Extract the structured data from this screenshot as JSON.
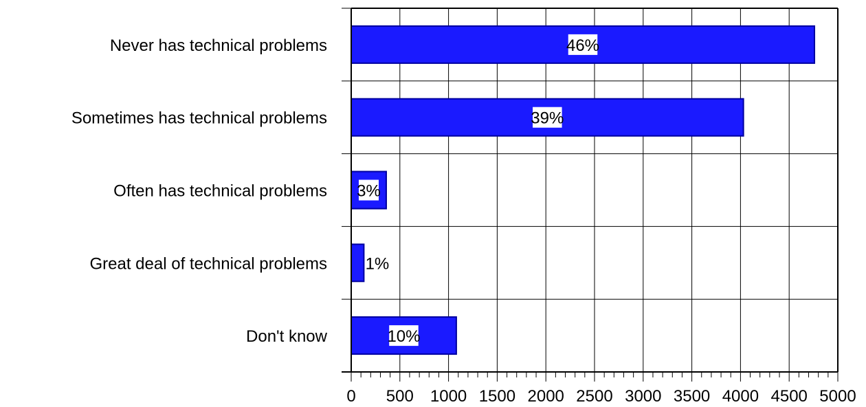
{
  "chart_data": {
    "type": "bar",
    "orientation": "horizontal",
    "categories": [
      "Never has technical problems",
      "Sometimes has technical problems",
      "Often has technical problems",
      "Great deal of technical problems",
      "Don't know"
    ],
    "values": [
      4760,
      4030,
      360,
      130,
      1080
    ],
    "data_labels": [
      "46%",
      "39%",
      "3%",
      "1%",
      "10%"
    ],
    "xlim": [
      0,
      5000
    ],
    "x_ticks": [
      "0",
      "500",
      "1000",
      "1500",
      "2000",
      "2500",
      "3000",
      "3500",
      "4000",
      "4500",
      "5000"
    ],
    "grid": true,
    "bar_color": "#1a1aff",
    "bar_edge_color": "#0000a0",
    "title": "",
    "xlabel": "",
    "ylabel": ""
  }
}
